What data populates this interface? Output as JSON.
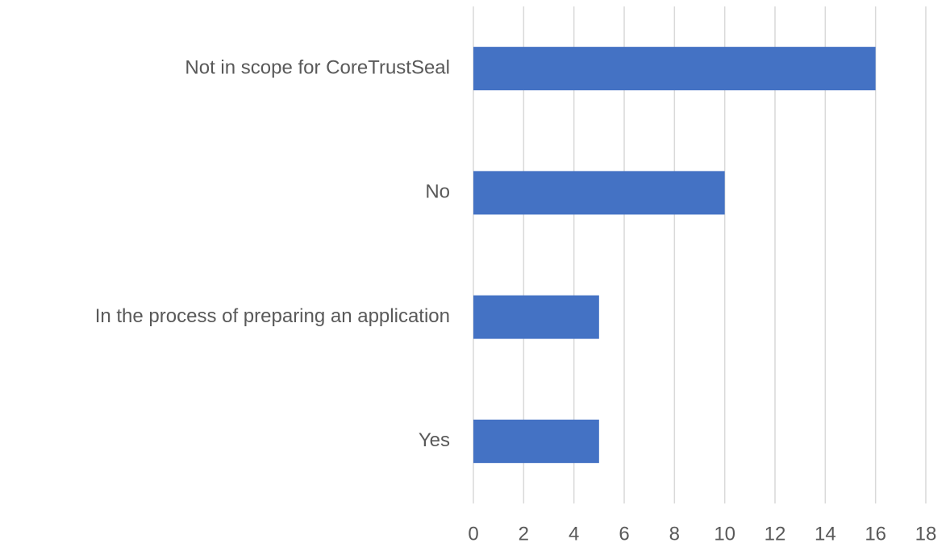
{
  "chart_data": {
    "type": "barh",
    "categories": [
      "Not in scope for CoreTrustSeal",
      "No",
      "In the process of preparing an application",
      "Yes"
    ],
    "values": [
      16,
      10,
      5,
      5
    ],
    "color": "#4472c4",
    "xlim": [
      0,
      18
    ],
    "xticks": [
      0,
      2,
      4,
      6,
      8,
      10,
      12,
      14,
      16,
      18
    ],
    "grid": true
  }
}
